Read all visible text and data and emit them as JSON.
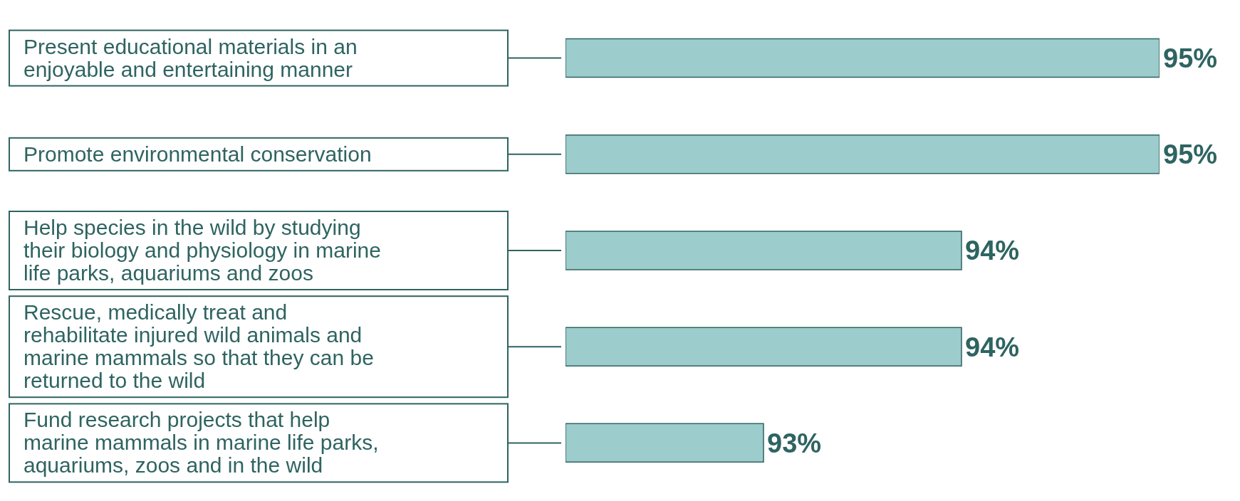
{
  "chart_data": {
    "type": "bar",
    "orientation": "horizontal",
    "categories": [
      "Present educational materials in an enjoyable and entertaining manner",
      "Promote environmental conservation",
      "Help species in the wild by studying their biology and physiology in marine life parks, aquariums and zoos",
      "Rescue, medically treat and rehabilitate injured wild animals and marine mammals so that they can be returned to the wild",
      "Fund research projects that help marine mammals in marine life parks, aquariums, zoos and in the wild"
    ],
    "values": [
      95,
      95,
      94,
      94,
      93
    ],
    "value_labels": [
      "95%",
      "95%",
      "94%",
      "94%",
      "93%"
    ],
    "color": "#9ccccb",
    "xlim": [
      92,
      95
    ]
  }
}
